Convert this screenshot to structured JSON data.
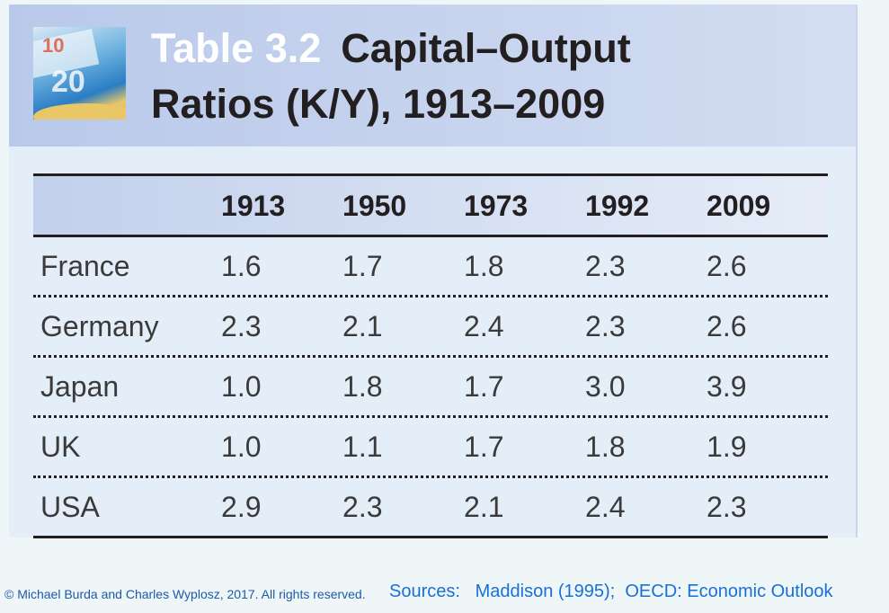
{
  "header": {
    "label": "Table 3.2",
    "title": "Capital–Output Ratios (K/Y), 1913–2009"
  },
  "table": {
    "columns": [
      "1913",
      "1950",
      "1973",
      "1992",
      "2009"
    ],
    "rows": [
      {
        "name": "France",
        "values": [
          "1.6",
          "1.7",
          "1.8",
          "2.3",
          "2.6"
        ]
      },
      {
        "name": "Germany",
        "values": [
          "2.3",
          "2.1",
          "2.4",
          "2.3",
          "2.6"
        ]
      },
      {
        "name": "Japan",
        "values": [
          "1.0",
          "1.8",
          "1.7",
          "3.0",
          "3.9"
        ]
      },
      {
        "name": "UK",
        "values": [
          "1.0",
          "1.1",
          "1.7",
          "1.8",
          "1.9"
        ]
      },
      {
        "name": "USA",
        "values": [
          "2.9",
          "2.3",
          "2.1",
          "2.4",
          "2.3"
        ]
      }
    ]
  },
  "footer": {
    "copyright": "© Michael Burda and Charles Wyplosz, 2017. All rights reserved.",
    "sources": "Sources:   Maddison (1995);  OECD: Economic Outlook"
  }
}
